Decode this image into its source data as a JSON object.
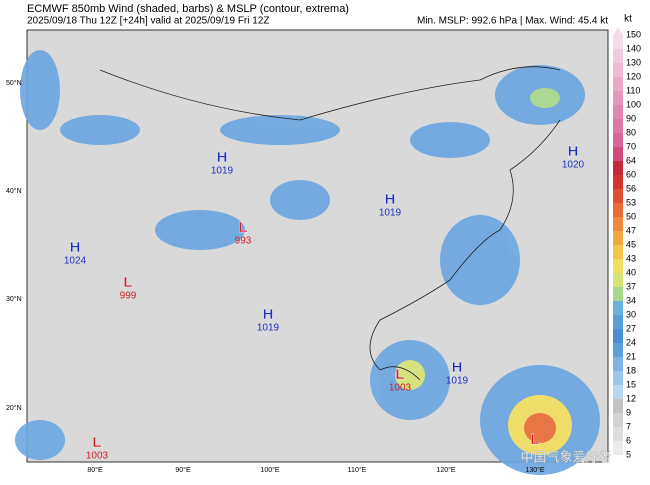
{
  "header": {
    "title": "ECMWF 850mb Wind (shaded, barbs) & MSLP (contour, extrema)",
    "subtitle": "2025/09/18 Thu 12Z [+24h] valid at 2025/09/19 Fri 12Z",
    "stats": "Min. MSLP: 992.6 hPa | Max. Wind: 45.4 kt"
  },
  "colorbar": {
    "unit": "kt",
    "levels": [
      150,
      140,
      130,
      120,
      110,
      100,
      90,
      80,
      70,
      64,
      60,
      56,
      53,
      50,
      47,
      45,
      43,
      40,
      37,
      34,
      30,
      27,
      24,
      21,
      18,
      15,
      12,
      9,
      7,
      6,
      5
    ],
    "colors": [
      "#f6dbe8",
      "#f2cadd",
      "#efb9d2",
      "#eba8c7",
      "#e797bc",
      "#e386b1",
      "#df75a6",
      "#db649b",
      "#d14a7c",
      "#c42a3c",
      "#d6342e",
      "#e04f33",
      "#ea6b36",
      "#f08a3a",
      "#f4a840",
      "#f6c44b",
      "#f3df5e",
      "#d5e474",
      "#a8d88c",
      "#6cb2e0",
      "#5a9fd8",
      "#4a8fd1",
      "#5f9fdc",
      "#7fb3e5",
      "#9cc6ec",
      "#b7d6f0",
      "#c4c4c4",
      "#d2d2d2",
      "#dedede",
      "#ebebeb"
    ]
  },
  "axes": {
    "lon_labels": [
      "80°E",
      "90°E",
      "100°E",
      "110°E",
      "120°E",
      "130°E"
    ],
    "lat_labels": [
      "50°N",
      "40°N",
      "30°N",
      "20°N"
    ]
  },
  "centers": [
    {
      "type": "H",
      "value": "1019"
    },
    {
      "type": "L",
      "value": "993"
    },
    {
      "type": "H",
      "value": "1024"
    },
    {
      "type": "L",
      "value": "999"
    },
    {
      "type": "H",
      "value": "1019"
    },
    {
      "type": "H",
      "value": "1020"
    },
    {
      "type": "H",
      "value": "1019"
    },
    {
      "type": "L",
      "value": "1003"
    },
    {
      "type": "H",
      "value": "1019"
    },
    {
      "type": "L",
      "value": "1003"
    },
    {
      "type": "L"
    }
  ],
  "watermark": "中国气象爱好者"
}
